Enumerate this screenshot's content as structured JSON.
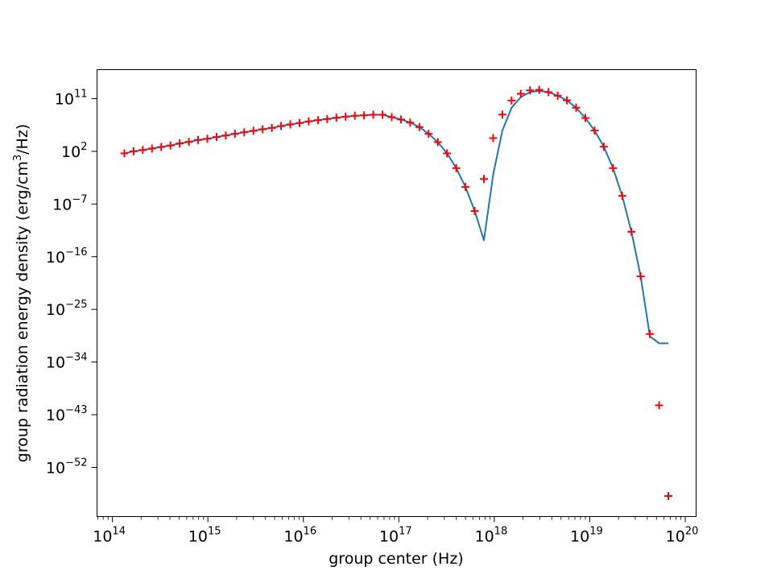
{
  "chart_data": {
    "type": "line",
    "title": "",
    "xlabel": "group center (Hz)",
    "ylabel_main": "group radiation energy density (erg/cm",
    "ylabel_sup": "3",
    "ylabel_tail": "/Hz)",
    "xscale": "log",
    "yscale": "log",
    "xlim": [
      69000000000000.0,
      1.3e+20
    ],
    "ylim": [
      4e-61,
      9000000000000000.0
    ],
    "grid": false,
    "legend": "none",
    "x_ticks": [
      {
        "base": "10",
        "exp": "14",
        "value": 100000000000000.0
      },
      {
        "base": "10",
        "exp": "15",
        "value": 1000000000000000.0
      },
      {
        "base": "10",
        "exp": "16",
        "value": 1e+16
      },
      {
        "base": "10",
        "exp": "17",
        "value": 1e+17
      },
      {
        "base": "10",
        "exp": "18",
        "value": 1e+18
      },
      {
        "base": "10",
        "exp": "19",
        "value": 1e+19
      },
      {
        "base": "10",
        "exp": "20",
        "value": 1e+20
      }
    ],
    "y_ticks": [
      {
        "base": "10",
        "exp": "11",
        "value": 100000000000.0
      },
      {
        "base": "10",
        "exp": "2",
        "value": 100.0
      },
      {
        "base": "10",
        "exp": "−7",
        "value": 1e-07
      },
      {
        "base": "10",
        "exp": "−16",
        "value": 1e-16
      },
      {
        "base": "10",
        "exp": "−25",
        "value": 1e-25
      },
      {
        "base": "10",
        "exp": "−34",
        "value": 1e-34
      },
      {
        "base": "10",
        "exp": "−43",
        "value": 1e-43
      },
      {
        "base": "10",
        "exp": "−52",
        "value": 1e-52
      }
    ],
    "x": [
      133400000000000.0,
      166600000000000.0,
      208100000000000.0,
      259900000000000.0,
      324600000000000.0,
      405400000000000.0,
      506400000000000.0,
      632500000000000.0,
      790000000000000.0,
      986800000000000.0,
      1233000000000000.0,
      1540000000000000.0,
      1923000000000000.0,
      2402000000000000.0,
      3000000000000000.0,
      3747000000000000.0,
      4680000000000000.0,
      5846000000000000.0,
      7302000000000000.0,
      9120000000000000.0,
      1.139e+16,
      1.423e+16,
      1.777e+16,
      2.22e+16,
      2.773e+16,
      3.463e+16,
      4.326e+16,
      5.403e+16,
      6.749e+16,
      8.43e+16,
      1.053e+17,
      1.315e+17,
      1.643e+17,
      2.052e+17,
      2.563e+17,
      3.201e+17,
      3.998e+17,
      4.994e+17,
      6.238e+17,
      7.791e+17,
      9.731e+17,
      1.215e+18,
      1.518e+18,
      1.896e+18,
      2.368e+18,
      2.958e+18,
      3.695e+18,
      4.615e+18,
      5.764e+18,
      7.2e+18,
      8.993e+18,
      1.123e+19,
      1.403e+19,
      1.752e+19,
      2.189e+19,
      2.734e+19,
      3.415e+19,
      4.265e+19,
      5.327e+19,
      6.654e+19
    ],
    "series": [
      {
        "type": "line",
        "color": "#1f77b4",
        "values": [
          45.0,
          100.0,
          170.0,
          300.0,
          560.0,
          1000.0,
          2200.0,
          4100.0,
          8700.0,
          14000.0,
          28000.0,
          51000.0,
          98000.0,
          180000.0,
          320000.0,
          590000.0,
          1000000.0,
          2100000.0,
          4000000.0,
          6800000.0,
          13000000.0,
          21000000.0,
          33000000.0,
          55000000.0,
          85000000.0,
          120000000.0,
          140000000.0,
          180000000.0,
          180000000.0,
          69000000.0,
          28000000.0,
          8100000.0,
          1400000.0,
          98000.0,
          3700.0,
          45.0,
          0.135,
          8.1e-05,
          6.3e-09,
          6.3e-14,
          0.01,
          350000.0,
          2800000000.0,
          190000000000.0,
          1300000000000.0,
          2100000000000.0,
          1300000000000.0,
          320000000000.0,
          50000000000.0,
          2800000000.0,
          50000000.0,
          350000.0,
          620.0,
          0.135,
          2.5e-06,
          1.8e-12,
          4.4e-20,
          2.5e-30,
          1.6e-31,
          1.6e-31
        ]
      },
      {
        "type": "scatter",
        "marker": "+",
        "color": "#ff0000",
        "values": [
          45.0,
          100.0,
          170.0,
          300.0,
          560.0,
          1000.0,
          2200.0,
          4100.0,
          8700.0,
          14000.0,
          28000.0,
          51000.0,
          98000.0,
          180000.0,
          320000.0,
          590000.0,
          1000000.0,
          2100000.0,
          4000000.0,
          6800000.0,
          13000000.0,
          21000000.0,
          33000000.0,
          55000000.0,
          85000000.0,
          120000000.0,
          140000000.0,
          180000000.0,
          180000000.0,
          69000000.0,
          28000000.0,
          8100000.0,
          1400000.0,
          98000.0,
          3700.0,
          45.0,
          0.135,
          8.1e-05,
          6.3e-09,
          0.0019,
          18000.0,
          190000000.0,
          48000000000.0,
          680000000000.0,
          2600000000000.0,
          3200000000000.0,
          1300000000000.0,
          320000000000.0,
          52000000000.0,
          2800000000.0,
          50000000.0,
          350000.0,
          620.0,
          0.135,
          2.5e-06,
          1.8e-12,
          4.4e-20,
          6.3e-30,
          4e-42,
          1.3e-57
        ]
      }
    ]
  }
}
